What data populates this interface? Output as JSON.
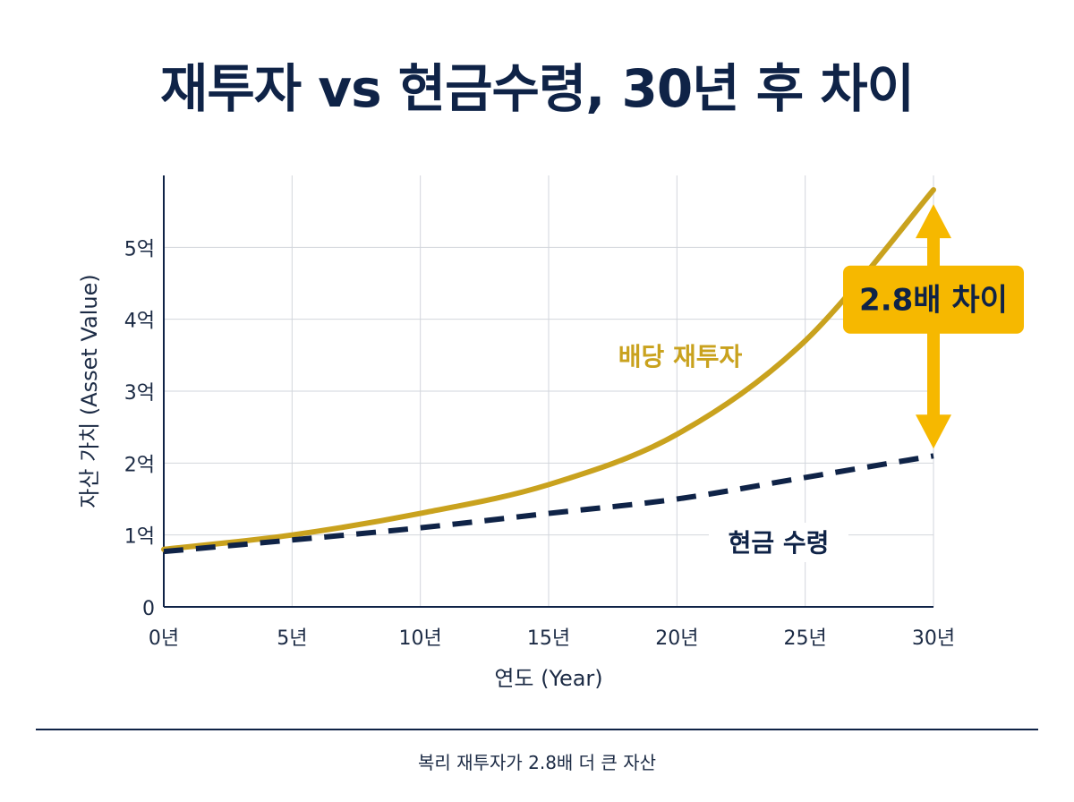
{
  "chart_data": {
    "type": "line",
    "title": "재투자 vs 현금수령, 30년 후 차이",
    "xlabel": "연도 (Year)",
    "ylabel": "자산 가치 (Asset Value)",
    "xlim": [
      0,
      30
    ],
    "ylim": [
      0,
      6
    ],
    "x_ticks": [
      {
        "value": 0,
        "label": "0년"
      },
      {
        "value": 5,
        "label": "5년"
      },
      {
        "value": 10,
        "label": "10년"
      },
      {
        "value": 15,
        "label": "15년"
      },
      {
        "value": 20,
        "label": "20년"
      },
      {
        "value": 25,
        "label": "25년"
      },
      {
        "value": 30,
        "label": "30년"
      }
    ],
    "y_ticks": [
      {
        "value": 0,
        "label": "0"
      },
      {
        "value": 1,
        "label": "1억"
      },
      {
        "value": 2,
        "label": "2억"
      },
      {
        "value": 3,
        "label": "3억"
      },
      {
        "value": 4,
        "label": "4억"
      },
      {
        "value": 5,
        "label": "5억"
      }
    ],
    "grid": true,
    "series": [
      {
        "name": "배당 재투자",
        "style": "solid",
        "color": "#c9a21e",
        "x": [
          0,
          5,
          10,
          15,
          20,
          25,
          30
        ],
        "y": [
          0.8,
          1.0,
          1.3,
          1.7,
          2.4,
          3.7,
          5.8
        ]
      },
      {
        "name": "현금 수령",
        "style": "dashed",
        "color": "#0f2347",
        "x": [
          0,
          5,
          10,
          15,
          20,
          25,
          30
        ],
        "y": [
          0.77,
          0.93,
          1.1,
          1.3,
          1.5,
          1.8,
          2.1
        ]
      }
    ],
    "annotation": {
      "label": "2.8배 차이",
      "x": 30,
      "y_from": 2.1,
      "y_to": 5.6,
      "color": "#f6b800"
    }
  },
  "footer": {
    "caption": "복리 재투자가 2.8배 더 큰 자산"
  }
}
